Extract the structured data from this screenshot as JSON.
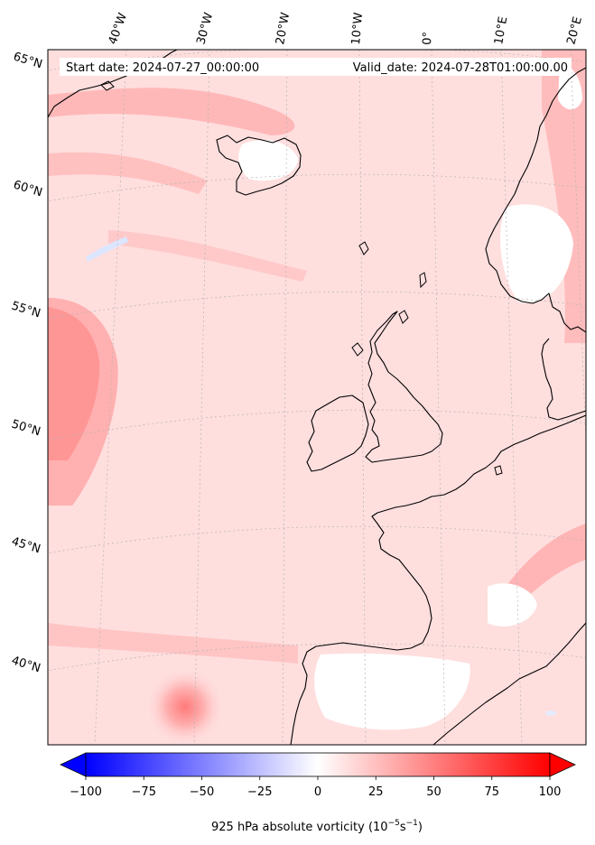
{
  "map": {
    "start_label": "Start date: 2024-07-27_00:00:00",
    "valid_label": "Valid_date: 2024-07-28T01:00:00.00",
    "projection": "conic",
    "extent": {
      "lon_min": -45,
      "lon_max": 22,
      "lat_min": 37,
      "lat_max": 65
    },
    "lon_labels": [
      "40°W",
      "30°W",
      "20°W",
      "10°W",
      "0°",
      "10°E",
      "20°E"
    ],
    "lat_labels": [
      "65°N",
      "60°N",
      "55°N",
      "50°N",
      "45°N",
      "40°N"
    ],
    "colors": {
      "land_outline": "#000000",
      "gridline": "#b0b0b0"
    }
  },
  "colorbar": {
    "label": "925 hPa absolute vorticity (10",
    "label_exp": "−5",
    "label_mid": "s",
    "label_exp2": "−1",
    "label_end": ")",
    "min": -100,
    "max": 100,
    "ticks": [
      "−100",
      "−75",
      "−50",
      "−25",
      "0",
      "25",
      "50",
      "75",
      "100"
    ],
    "colormap": "bwr",
    "extend": "both",
    "colors": {
      "negative": "#0000ff",
      "zero": "#ffffff",
      "positive": "#ff0000"
    }
  }
}
